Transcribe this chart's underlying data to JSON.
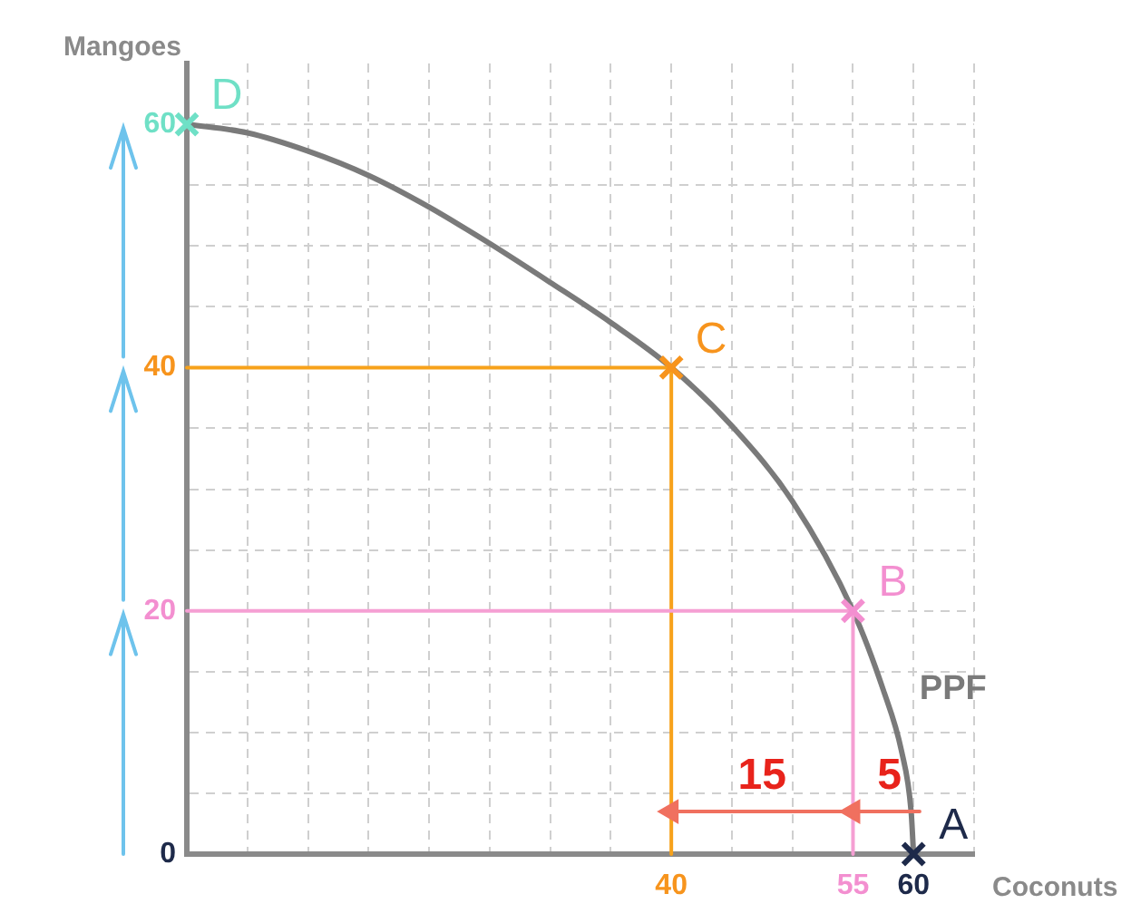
{
  "chart_data": {
    "type": "line",
    "xlabel": "Coconuts",
    "ylabel": "Mangoes",
    "xlim": [
      0,
      65
    ],
    "ylim": [
      0,
      65
    ],
    "xticks": [
      {
        "value": 0,
        "label": null
      },
      {
        "value": 5,
        "label": null
      },
      {
        "value": 10,
        "label": null
      },
      {
        "value": 15,
        "label": null
      },
      {
        "value": 20,
        "label": null
      },
      {
        "value": 25,
        "label": null
      },
      {
        "value": 30,
        "label": null
      },
      {
        "value": 35,
        "label": null
      },
      40,
      {
        "value": 45,
        "label": null
      },
      {
        "value": 50,
        "label": null
      },
      55,
      60,
      {
        "value": 65,
        "label": null
      }
    ],
    "yticks": [
      0,
      {
        "value": 5,
        "label": null
      },
      {
        "value": 10,
        "label": null
      },
      {
        "value": 15,
        "label": null
      },
      20,
      {
        "value": 25,
        "label": null
      },
      {
        "value": 30,
        "label": null
      },
      {
        "value": 35,
        "label": null
      },
      40,
      {
        "value": 45,
        "label": null
      },
      {
        "value": 50,
        "label": null
      },
      {
        "value": 55,
        "label": null
      },
      60
    ],
    "grid": true,
    "legend": false,
    "series": [
      {
        "name": "PPF",
        "color": "#7a7a7a",
        "marker": "none",
        "x": [
          0,
          5,
          10,
          15,
          20,
          25,
          30,
          35,
          40,
          45,
          50,
          55,
          57.5,
          59,
          59.8,
          60
        ],
        "values": [
          60,
          59.3,
          57.8,
          55.8,
          53.2,
          50.2,
          47,
          43.7,
          40,
          35.2,
          29,
          20,
          13.5,
          8.5,
          3.5,
          0
        ]
      },
      {
        "color": "#f7a21b",
        "marker": "none",
        "x": [
          0,
          40,
          40
        ],
        "values": [
          40,
          40,
          0
        ]
      },
      {
        "color": "#f59fd3",
        "marker": "none",
        "x": [
          0,
          55,
          55
        ],
        "values": [
          20,
          20,
          0
        ]
      },
      {
        "color": "#f0705f",
        "marker": "triangle",
        "x": [
          54.5,
          40
        ],
        "values": [
          3.5,
          3.5
        ]
      },
      {
        "color": "#f0705f",
        "marker": "triangle",
        "x": [
          60.5,
          55
        ],
        "values": [
          3.5,
          3.5
        ]
      },
      {
        "type": "scatter",
        "name": "D",
        "color": "#6fe0c6",
        "marker": "cross",
        "x": [
          0
        ],
        "values": [
          60
        ]
      },
      {
        "type": "scatter",
        "name": "C",
        "color": "#f7941d",
        "marker": "cross",
        "x": [
          40
        ],
        "values": [
          40
        ]
      },
      {
        "type": "scatter",
        "name": "B",
        "color": "#f38fd0",
        "marker": "cross",
        "x": [
          55
        ],
        "values": [
          20
        ]
      },
      {
        "type": "scatter",
        "name": "A",
        "color": "#1e2a4a",
        "marker": "cross",
        "x": [
          60
        ],
        "values": [
          0
        ]
      }
    ],
    "annotations": [
      {
        "text": "15",
        "x": 47.5,
        "y": 3.5
      },
      {
        "text": "5",
        "x": 58,
        "y": 3.5
      }
    ]
  }
}
